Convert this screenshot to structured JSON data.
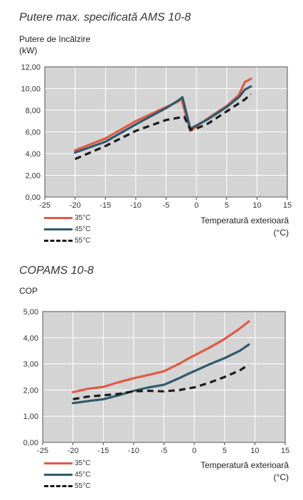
{
  "charts": [
    {
      "title": "Putere max. specificată AMS 10-8",
      "ylabel_lines": [
        "Putere de încălzire",
        "(kW)"
      ],
      "xlabel_lines": [
        "Temperatură exterioară",
        "(°C)"
      ]
    },
    {
      "title": "COPAMS 10-8",
      "ylabel_lines": [
        "COP"
      ],
      "xlabel_lines": [
        "Temperatură exterioară",
        "(°C)"
      ]
    }
  ],
  "colors": {
    "35C": "#e05a45",
    "45C": "#2e5a6e",
    "55C": "#1a1a1a",
    "plot_bg": "#d4d4d4",
    "grid": "#ffffff"
  },
  "chart_data": [
    {
      "type": "line",
      "title": "Putere max. specificată AMS 10-8",
      "ylabel": "Putere de încălzire (kW)",
      "xlabel": "Temperatură exterioară (°C)",
      "xlim": [
        -25,
        15
      ],
      "ylim": [
        0,
        12
      ],
      "xticks": [
        "-25",
        "-20",
        "-15",
        "-10",
        "-5",
        "0",
        "5",
        "10",
        "15"
      ],
      "yticks": [
        "0,00",
        "2,00",
        "4,00",
        "6,00",
        "8,00",
        "10,00",
        "12,00"
      ],
      "grid": true,
      "legend_position": "bottom-left",
      "series": [
        {
          "name": "35°C",
          "style": "solid",
          "color": "#e05a45",
          "points": [
            [
              -20,
              4.3
            ],
            [
              -15,
              5.4
            ],
            [
              -10,
              7.0
            ],
            [
              -5,
              8.3
            ],
            [
              -3,
              8.8
            ],
            [
              -2.5,
              9.1
            ],
            [
              -1,
              6.1
            ],
            [
              0,
              6.5
            ],
            [
              2,
              7.3
            ],
            [
              5,
              8.4
            ],
            [
              7,
              9.4
            ],
            [
              8,
              10.6
            ],
            [
              9,
              10.9
            ]
          ]
        },
        {
          "name": "45°C",
          "style": "solid",
          "color": "#2e5a6e",
          "points": [
            [
              -20,
              4.1
            ],
            [
              -15,
              5.1
            ],
            [
              -10,
              6.7
            ],
            [
              -5,
              8.2
            ],
            [
              -3,
              8.9
            ],
            [
              -2.3,
              9.2
            ],
            [
              -1,
              6.3
            ],
            [
              0,
              6.6
            ],
            [
              2,
              7.2
            ],
            [
              5,
              8.3
            ],
            [
              7,
              9.2
            ],
            [
              8,
              9.9
            ],
            [
              9,
              10.2
            ]
          ]
        },
        {
          "name": "55°C",
          "style": "dashed",
          "color": "#1a1a1a",
          "points": [
            [
              -20,
              3.5
            ],
            [
              -15,
              4.7
            ],
            [
              -10,
              6.1
            ],
            [
              -5,
              7.1
            ],
            [
              -2,
              7.4
            ],
            [
              -1,
              6.2
            ],
            [
              0,
              6.3
            ],
            [
              2,
              6.8
            ],
            [
              5,
              7.9
            ],
            [
              8,
              9.0
            ],
            [
              9,
              9.5
            ]
          ]
        }
      ]
    },
    {
      "type": "line",
      "title": "COPAMS 10-8",
      "ylabel": "COP",
      "xlabel": "Temperatură exterioară (°C)",
      "xlim": [
        -25,
        15
      ],
      "ylim": [
        0,
        5
      ],
      "xticks": [
        "-25",
        "-20",
        "-15",
        "-10",
        "-5",
        "0",
        "5",
        "10",
        "15"
      ],
      "yticks": [
        "0,00",
        "1,00",
        "2,00",
        "3,00",
        "4,00",
        "5,00"
      ],
      "grid": true,
      "legend_position": "bottom-left",
      "series": [
        {
          "name": "35°C",
          "style": "solid",
          "color": "#e05a45",
          "points": [
            [
              -20,
              1.92
            ],
            [
              -17.5,
              2.05
            ],
            [
              -15,
              2.12
            ],
            [
              -12.5,
              2.3
            ],
            [
              -10,
              2.45
            ],
            [
              -7.5,
              2.58
            ],
            [
              -5,
              2.72
            ],
            [
              -2.5,
              3.0
            ],
            [
              -1,
              3.2
            ],
            [
              0,
              3.32
            ],
            [
              2.5,
              3.62
            ],
            [
              5,
              3.95
            ],
            [
              7.5,
              4.35
            ],
            [
              9,
              4.62
            ]
          ]
        },
        {
          "name": "45°C",
          "style": "solid",
          "color": "#2e5a6e",
          "points": [
            [
              -20,
              1.5
            ],
            [
              -17.5,
              1.58
            ],
            [
              -15,
              1.65
            ],
            [
              -12.5,
              1.8
            ],
            [
              -10,
              1.97
            ],
            [
              -7.5,
              2.1
            ],
            [
              -5,
              2.2
            ],
            [
              -2.5,
              2.45
            ],
            [
              -1,
              2.62
            ],
            [
              0,
              2.72
            ],
            [
              2.5,
              2.98
            ],
            [
              5,
              3.22
            ],
            [
              7.5,
              3.5
            ],
            [
              9,
              3.74
            ]
          ]
        },
        {
          "name": "55°C",
          "style": "dashed",
          "color": "#1a1a1a",
          "points": [
            [
              -20,
              1.65
            ],
            [
              -17.5,
              1.75
            ],
            [
              -15,
              1.8
            ],
            [
              -12.5,
              1.85
            ],
            [
              -10,
              1.95
            ],
            [
              -7.5,
              1.97
            ],
            [
              -5,
              1.95
            ],
            [
              -2.5,
              2.0
            ],
            [
              0,
              2.1
            ],
            [
              2.5,
              2.28
            ],
            [
              5,
              2.5
            ],
            [
              7.5,
              2.75
            ],
            [
              9,
              2.97
            ]
          ]
        }
      ]
    }
  ]
}
